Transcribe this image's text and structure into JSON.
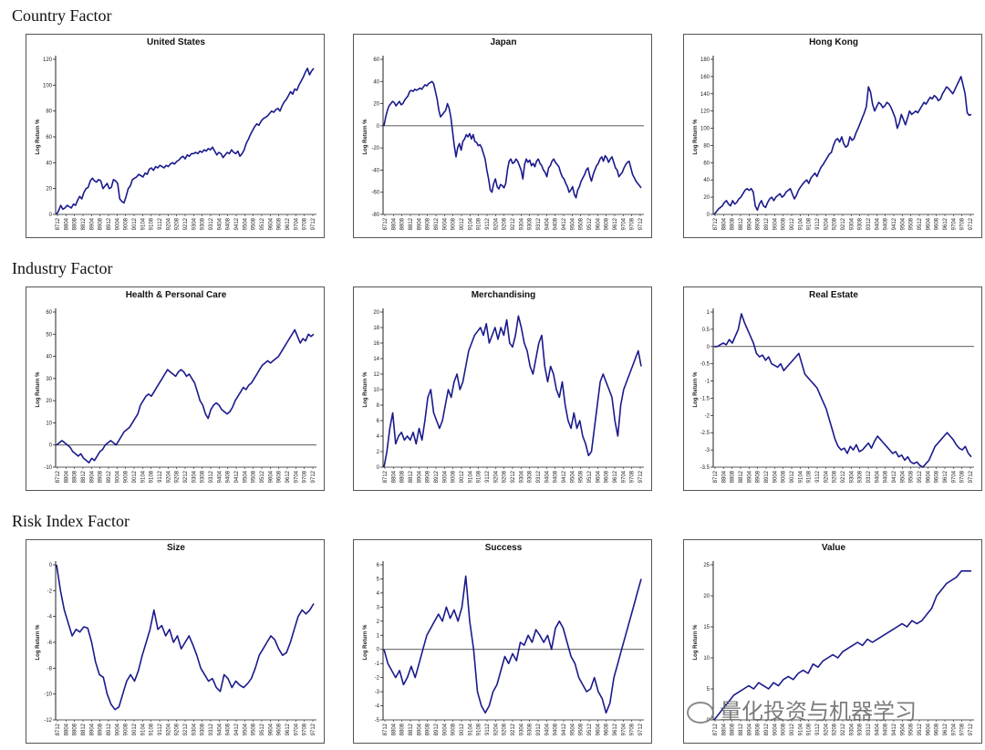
{
  "sections": [
    {
      "title": "Country Factor"
    },
    {
      "title": "Industry Factor"
    },
    {
      "title": "Risk Index Factor"
    }
  ],
  "watermark": "量化投资与机器学习",
  "colors": {
    "line": "#1a1a8c",
    "axis": "#222",
    "border": "#555"
  },
  "chart_data": [
    {
      "type": "line",
      "title": "United States",
      "ylabel": "Log Return %",
      "ylim": [
        0,
        120
      ],
      "yticks": [
        "0",
        "20",
        "40",
        "60",
        "80",
        "100",
        "120"
      ],
      "xticks": [
        "8712",
        "8804",
        "8808",
        "8812",
        "8904",
        "8908",
        "8912",
        "9004",
        "9008",
        "9012",
        "9104",
        "9108",
        "9112",
        "9204",
        "9208",
        "9212",
        "9304",
        "9308",
        "9312",
        "9404",
        "9408",
        "9412",
        "9504",
        "9508",
        "9512",
        "9604",
        "9608",
        "9612",
        "9704",
        "9708",
        "9712"
      ],
      "values": [
        0,
        3,
        7,
        4,
        5,
        7,
        6,
        5,
        8,
        7,
        11,
        14,
        12,
        17,
        20,
        21,
        26,
        28,
        26,
        25,
        27,
        26,
        20,
        22,
        24,
        20,
        21,
        27,
        26,
        24,
        12,
        10,
        9,
        14,
        20,
        22,
        27,
        28,
        29,
        31,
        30,
        29,
        32,
        31,
        35,
        36,
        34,
        37,
        36,
        38,
        37,
        36,
        38,
        37,
        39,
        40,
        39,
        41,
        42,
        44,
        45,
        43,
        46,
        45,
        47,
        47,
        48,
        47,
        49,
        48,
        50,
        49,
        51,
        50,
        52,
        49,
        46,
        48,
        47,
        44,
        46,
        48,
        47,
        50,
        48,
        47,
        49,
        45,
        47,
        50,
        55,
        58,
        62,
        65,
        68,
        70,
        69,
        72,
        74,
        75,
        76,
        78,
        80,
        79,
        81,
        82,
        80,
        84,
        87,
        89,
        92,
        95,
        93,
        97,
        96,
        100,
        103,
        106,
        110,
        113,
        108,
        111,
        113
      ]
    },
    {
      "type": "line",
      "title": "Japan",
      "ylabel": "Log Return %",
      "ylim": [
        -80,
        60
      ],
      "yticks": [
        "-80",
        "-60",
        "-40",
        "-20",
        "0",
        "20",
        "40",
        "60"
      ],
      "xticks": [
        "8712",
        "8804",
        "8808",
        "8812",
        "8904",
        "8908",
        "8912",
        "9004",
        "9008",
        "9012",
        "9104",
        "9108",
        "9112",
        "9204",
        "9208",
        "9212",
        "9304",
        "9308",
        "9312",
        "9404",
        "9408",
        "9412",
        "9504",
        "9508",
        "9512",
        "9604",
        "9608",
        "9612",
        "9704",
        "9708",
        "9712"
      ],
      "values": [
        0,
        8,
        14,
        18,
        20,
        22,
        21,
        18,
        20,
        22,
        19,
        20,
        23,
        25,
        27,
        31,
        32,
        31,
        33,
        32,
        33,
        34,
        33,
        35,
        37,
        36,
        38,
        39,
        40,
        38,
        31,
        24,
        14,
        8,
        10,
        12,
        14,
        20,
        16,
        8,
        -5,
        -18,
        -28,
        -20,
        -16,
        -22,
        -14,
        -12,
        -8,
        -10,
        -7,
        -12,
        -8,
        -14,
        -15,
        -18,
        -17,
        -20,
        -25,
        -30,
        -40,
        -48,
        -58,
        -60,
        -52,
        -48,
        -55,
        -57,
        -53,
        -54,
        -56,
        -52,
        -40,
        -32,
        -30,
        -34,
        -33,
        -30,
        -32,
        -36,
        -40,
        -48,
        -35,
        -30,
        -33,
        -31,
        -36,
        -34,
        -37,
        -32,
        -30,
        -34,
        -36,
        -40,
        -42,
        -46,
        -38,
        -36,
        -32,
        -30,
        -33,
        -35,
        -37,
        -42,
        -46,
        -48,
        -52,
        -55,
        -60,
        -58,
        -55,
        -62,
        -65,
        -58,
        -55,
        -50,
        -47,
        -44,
        -40,
        -38,
        -45,
        -50,
        -44,
        -40,
        -36,
        -34,
        -30,
        -28,
        -32,
        -27,
        -29,
        -33,
        -30,
        -28,
        -33,
        -38,
        -40,
        -46,
        -44,
        -42,
        -38,
        -35,
        -33,
        -32,
        -38,
        -44,
        -47,
        -50,
        -52,
        -54,
        -56
      ]
    },
    {
      "type": "line",
      "title": "Hong Kong",
      "ylabel": "Log Return %",
      "ylim": [
        0,
        180
      ],
      "yticks": [
        "0",
        "20",
        "40",
        "60",
        "80",
        "100",
        "120",
        "140",
        "160",
        "180"
      ],
      "xticks": [
        "8712",
        "8804",
        "8808",
        "8812",
        "8904",
        "8908",
        "8912",
        "9004",
        "9008",
        "9012",
        "9104",
        "9108",
        "9112",
        "9204",
        "9208",
        "9212",
        "9304",
        "9308",
        "9312",
        "9404",
        "9408",
        "9412",
        "9504",
        "9508",
        "9512",
        "9604",
        "9608",
        "9612",
        "9704",
        "9708",
        "9712"
      ],
      "values": [
        0,
        3,
        6,
        8,
        10,
        14,
        16,
        12,
        10,
        16,
        12,
        14,
        18,
        20,
        24,
        28,
        30,
        28,
        30,
        26,
        10,
        5,
        12,
        16,
        10,
        8,
        14,
        18,
        20,
        16,
        20,
        22,
        24,
        20,
        22,
        26,
        28,
        30,
        24,
        18,
        22,
        28,
        32,
        35,
        38,
        40,
        36,
        42,
        45,
        48,
        44,
        50,
        55,
        58,
        62,
        66,
        70,
        72,
        80,
        86,
        88,
        84,
        90,
        82,
        78,
        80,
        90,
        86,
        88,
        95,
        100,
        106,
        112,
        118,
        125,
        148,
        142,
        128,
        120,
        125,
        130,
        128,
        124,
        126,
        130,
        128,
        124,
        118,
        112,
        100,
        106,
        116,
        110,
        104,
        112,
        120,
        116,
        118,
        120,
        118,
        122,
        126,
        130,
        128,
        132,
        136,
        134,
        138,
        136,
        132,
        134,
        140,
        144,
        148,
        146,
        143,
        140,
        145,
        150,
        155,
        160,
        150,
        140,
        118,
        115,
        116
      ]
    },
    {
      "type": "line",
      "title": "Health & Personal Care",
      "ylabel": "Log Return %",
      "ylim": [
        -10,
        60
      ],
      "yticks": [
        "-10",
        "0",
        "10",
        "20",
        "30",
        "40",
        "50",
        "60"
      ],
      "xticks": [
        "8712",
        "8804",
        "8808",
        "8812",
        "8904",
        "8908",
        "8912",
        "9004",
        "9008",
        "9012",
        "9104",
        "9108",
        "9112",
        "9204",
        "9208",
        "9212",
        "9304",
        "9308",
        "9312",
        "9404",
        "9408",
        "9412",
        "9504",
        "9508",
        "9512",
        "9604",
        "9608",
        "9612",
        "9704",
        "9708",
        "9712"
      ],
      "values": [
        0,
        1,
        2,
        1,
        0,
        -1,
        -3,
        -4,
        -5,
        -4,
        -6,
        -7,
        -8,
        -6,
        -7,
        -5,
        -3,
        -2,
        0,
        1,
        2,
        1,
        0,
        2,
        4,
        6,
        7,
        8,
        10,
        12,
        14,
        18,
        20,
        22,
        23,
        22,
        24,
        26,
        28,
        30,
        32,
        34,
        33,
        32,
        31,
        33,
        34,
        33,
        31,
        32,
        30,
        28,
        24,
        20,
        18,
        14,
        12,
        16,
        18,
        19,
        18,
        16,
        15,
        14,
        15,
        17,
        20,
        22,
        24,
        26,
        25,
        27,
        28,
        30,
        32,
        34,
        36,
        37,
        38,
        37,
        38,
        39,
        40,
        42,
        44,
        46,
        48,
        50,
        52,
        49,
        46,
        48,
        47,
        50,
        49,
        50
      ]
    },
    {
      "type": "line",
      "title": "Merchandising",
      "ylabel": "Log Return %",
      "ylim": [
        0,
        20
      ],
      "yticks": [
        "0",
        "2",
        "4",
        "6",
        "8",
        "10",
        "12",
        "14",
        "16",
        "18",
        "20"
      ],
      "xticks": [
        "8712",
        "8804",
        "8808",
        "8812",
        "8904",
        "8908",
        "8912",
        "9004",
        "9008",
        "9012",
        "9104",
        "9108",
        "9112",
        "9204",
        "9208",
        "9212",
        "9304",
        "9308",
        "9312",
        "9404",
        "9408",
        "9412",
        "9504",
        "9508",
        "9512",
        "9604",
        "9608",
        "9612",
        "9704",
        "9708",
        "9712"
      ],
      "values": [
        0,
        2,
        5,
        7,
        3,
        4,
        4.5,
        3.5,
        4,
        3.5,
        4.5,
        3,
        5,
        3.5,
        6,
        9,
        10,
        7,
        6,
        5,
        6,
        8,
        10,
        9,
        11,
        12,
        10,
        11,
        13,
        15,
        16,
        17,
        17.5,
        18,
        17,
        18.5,
        16,
        17,
        18,
        16.5,
        18,
        17,
        19,
        16,
        15.5,
        17,
        19.5,
        18,
        16,
        15,
        13,
        12,
        14,
        16,
        17,
        13,
        11,
        13,
        12,
        10,
        9,
        11,
        8,
        6,
        5,
        7,
        5,
        6,
        4,
        3,
        1.5,
        2,
        5,
        8,
        11,
        12,
        11,
        10,
        9,
        6,
        4,
        8,
        10,
        11,
        12,
        13,
        14,
        15,
        13
      ]
    },
    {
      "type": "line",
      "title": "Real Estate",
      "ylabel": "Log Return %",
      "ylim": [
        -3.5,
        1.0
      ],
      "yticks": [
        "-3.5",
        "-3",
        "-2.5",
        "-2",
        "-1.5",
        "-1",
        "-0.5",
        "0",
        "0.5",
        "1"
      ],
      "xticks": [
        "8712",
        "8804",
        "8808",
        "8812",
        "8904",
        "8908",
        "8912",
        "9004",
        "9008",
        "9012",
        "9104",
        "9108",
        "9112",
        "9204",
        "9208",
        "9212",
        "9304",
        "9308",
        "9312",
        "9404",
        "9408",
        "9412",
        "9504",
        "9508",
        "9512",
        "9604",
        "9608",
        "9612",
        "9704",
        "9708",
        "9712"
      ],
      "values": [
        0,
        0,
        0.05,
        0.1,
        0.05,
        0.2,
        0.1,
        0.3,
        0.5,
        0.95,
        0.7,
        0.5,
        0.3,
        0.1,
        -0.2,
        -0.3,
        -0.25,
        -0.4,
        -0.3,
        -0.5,
        -0.55,
        -0.6,
        -0.5,
        -0.7,
        -0.6,
        -0.5,
        -0.4,
        -0.3,
        -0.2,
        -0.5,
        -0.8,
        -0.9,
        -1.0,
        -1.1,
        -1.2,
        -1.4,
        -1.6,
        -1.8,
        -2.1,
        -2.4,
        -2.7,
        -2.9,
        -3.0,
        -2.95,
        -3.1,
        -2.9,
        -3.0,
        -2.85,
        -3.05,
        -3.0,
        -2.9,
        -2.8,
        -2.95,
        -2.75,
        -2.6,
        -2.7,
        -2.8,
        -2.9,
        -3.0,
        -3.1,
        -3.05,
        -3.2,
        -3.15,
        -3.3,
        -3.2,
        -3.35,
        -3.4,
        -3.35,
        -3.45,
        -3.5,
        -3.4,
        -3.3,
        -3.1,
        -2.9,
        -2.8,
        -2.7,
        -2.6,
        -2.5,
        -2.6,
        -2.7,
        -2.85,
        -2.95,
        -3.0,
        -2.9,
        -3.1,
        -3.2
      ]
    },
    {
      "type": "line",
      "title": "Size",
      "ylabel": "Log Return %",
      "ylim": [
        -12,
        0
      ],
      "yticks": [
        "-12",
        "-10",
        "-8",
        "-6",
        "-4",
        "-2",
        "0"
      ],
      "xticks": [
        "8712",
        "8804",
        "8808",
        "8812",
        "8904",
        "8908",
        "8912",
        "9004",
        "9008",
        "9012",
        "9104",
        "9108",
        "9112",
        "9204",
        "9208",
        "9212",
        "9304",
        "9308",
        "9312",
        "9404",
        "9408",
        "9412",
        "9504",
        "9508",
        "9512",
        "9604",
        "9608",
        "9612",
        "9704",
        "9708",
        "9712"
      ],
      "values": [
        0,
        -2,
        -3.5,
        -4.5,
        -5.5,
        -5,
        -5.2,
        -4.8,
        -4.9,
        -6,
        -7.5,
        -8.5,
        -8.7,
        -10,
        -10.8,
        -11.2,
        -11,
        -10,
        -9,
        -8.5,
        -9,
        -8.2,
        -7,
        -6,
        -5,
        -3.5,
        -5,
        -4.7,
        -5.5,
        -5,
        -6,
        -5.5,
        -6.5,
        -6,
        -5.5,
        -6.2,
        -7,
        -8,
        -8.5,
        -9,
        -8.8,
        -9.5,
        -9.8,
        -8.5,
        -8.8,
        -9.5,
        -9,
        -9.3,
        -9.5,
        -9.2,
        -8.8,
        -8,
        -7,
        -6.5,
        -6,
        -5.5,
        -5.8,
        -6.5,
        -7,
        -6.8,
        -6,
        -5,
        -4,
        -3.5,
        -3.8,
        -3.5,
        -3
      ]
    },
    {
      "type": "line",
      "title": "Success",
      "ylabel": "Log Return %",
      "ylim": [
        -5,
        6
      ],
      "yticks": [
        "-5",
        "-4",
        "-3",
        "-2",
        "-1",
        "0",
        "1",
        "2",
        "3",
        "4",
        "5",
        "6"
      ],
      "xticks": [
        "8712",
        "8804",
        "8808",
        "8812",
        "8904",
        "8908",
        "8912",
        "9004",
        "9008",
        "9012",
        "9104",
        "9108",
        "9112",
        "9204",
        "9208",
        "9212",
        "9304",
        "9308",
        "9312",
        "9404",
        "9408",
        "9412",
        "9504",
        "9508",
        "9512",
        "9604",
        "9608",
        "9612",
        "9704",
        "9708",
        "9712"
      ],
      "values": [
        0,
        -1,
        -1.5,
        -2,
        -1.5,
        -2.5,
        -2,
        -1.2,
        -2,
        -1,
        0,
        1,
        1.5,
        2,
        2.5,
        2,
        3,
        2.2,
        2.8,
        2,
        3,
        5.2,
        2,
        0,
        -3,
        -4,
        -4.5,
        -4,
        -3,
        -2.5,
        -1.5,
        -0.5,
        -1,
        -0.3,
        -0.8,
        0.5,
        0.3,
        1,
        0.5,
        1.4,
        1,
        0.5,
        1,
        0,
        1.5,
        2,
        1.5,
        0.5,
        -0.5,
        -1,
        -2,
        -2.5,
        -3,
        -2.8,
        -2,
        -3,
        -3.5,
        -4.5,
        -3.8,
        -2,
        -1,
        0,
        1,
        2,
        3,
        4,
        5
      ]
    },
    {
      "type": "line",
      "title": "Value",
      "ylabel": "Log Return %",
      "ylim": [
        0,
        25
      ],
      "yticks": [
        "0",
        "5",
        "10",
        "15",
        "20",
        "25"
      ],
      "xticks": [
        "8712",
        "8804",
        "8808",
        "8812",
        "8904",
        "8908",
        "8912",
        "9004",
        "9008",
        "9012",
        "9104",
        "9108",
        "9112",
        "9204",
        "9208",
        "9212",
        "9304",
        "9308",
        "9312",
        "9404",
        "9408",
        "9412",
        "9504",
        "9508",
        "9512",
        "9604",
        "9608",
        "9612",
        "9704",
        "9708",
        "9712"
      ],
      "values": [
        0,
        1,
        2,
        3,
        4,
        4.5,
        5,
        5.5,
        5,
        6,
        5.5,
        5,
        6,
        5.5,
        6.5,
        7,
        6.5,
        7.5,
        8,
        7.5,
        9,
        8.5,
        9.5,
        10,
        10.5,
        10,
        11,
        11.5,
        12,
        12.5,
        12,
        13,
        12.5,
        13,
        13.5,
        14,
        14.5,
        15,
        15.5,
        15,
        16,
        15.5,
        16,
        17,
        18,
        20,
        21,
        22,
        22.5,
        23,
        24,
        24,
        24
      ]
    }
  ]
}
